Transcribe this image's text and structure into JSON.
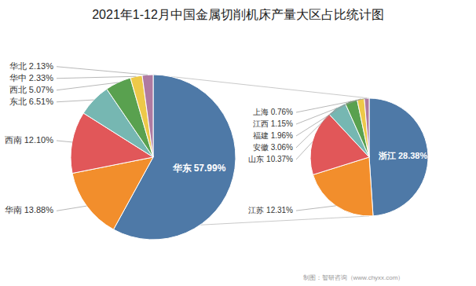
{
  "chart_data": [
    {
      "type": "pie",
      "title": "2021年1-12月中国金属切削机床产量大区占比统计图",
      "categories": [
        "华东",
        "华南",
        "西南",
        "东北",
        "西北",
        "华中",
        "华北"
      ],
      "values": [
        57.99,
        13.88,
        12.1,
        6.51,
        5.07,
        2.33,
        2.13
      ],
      "value_labels": [
        "57.99%",
        "13.88%",
        "12.10%",
        "6.51%",
        "5.07%",
        "2.33%",
        "2.13%"
      ]
    },
    {
      "type": "pie",
      "categories": [
        "浙江",
        "江苏",
        "山东",
        "安徽",
        "福建",
        "江西",
        "上海"
      ],
      "values": [
        28.38,
        12.31,
        10.37,
        3.06,
        1.96,
        1.15,
        0.76
      ],
      "value_labels": [
        "28.38%",
        "12.31%",
        "10.37%",
        "3.06%",
        "1.96%",
        "1.15%",
        "0.76%"
      ],
      "annotations": [
        "制图：智研咨询（www.chyxx.com）"
      ]
    }
  ]
}
